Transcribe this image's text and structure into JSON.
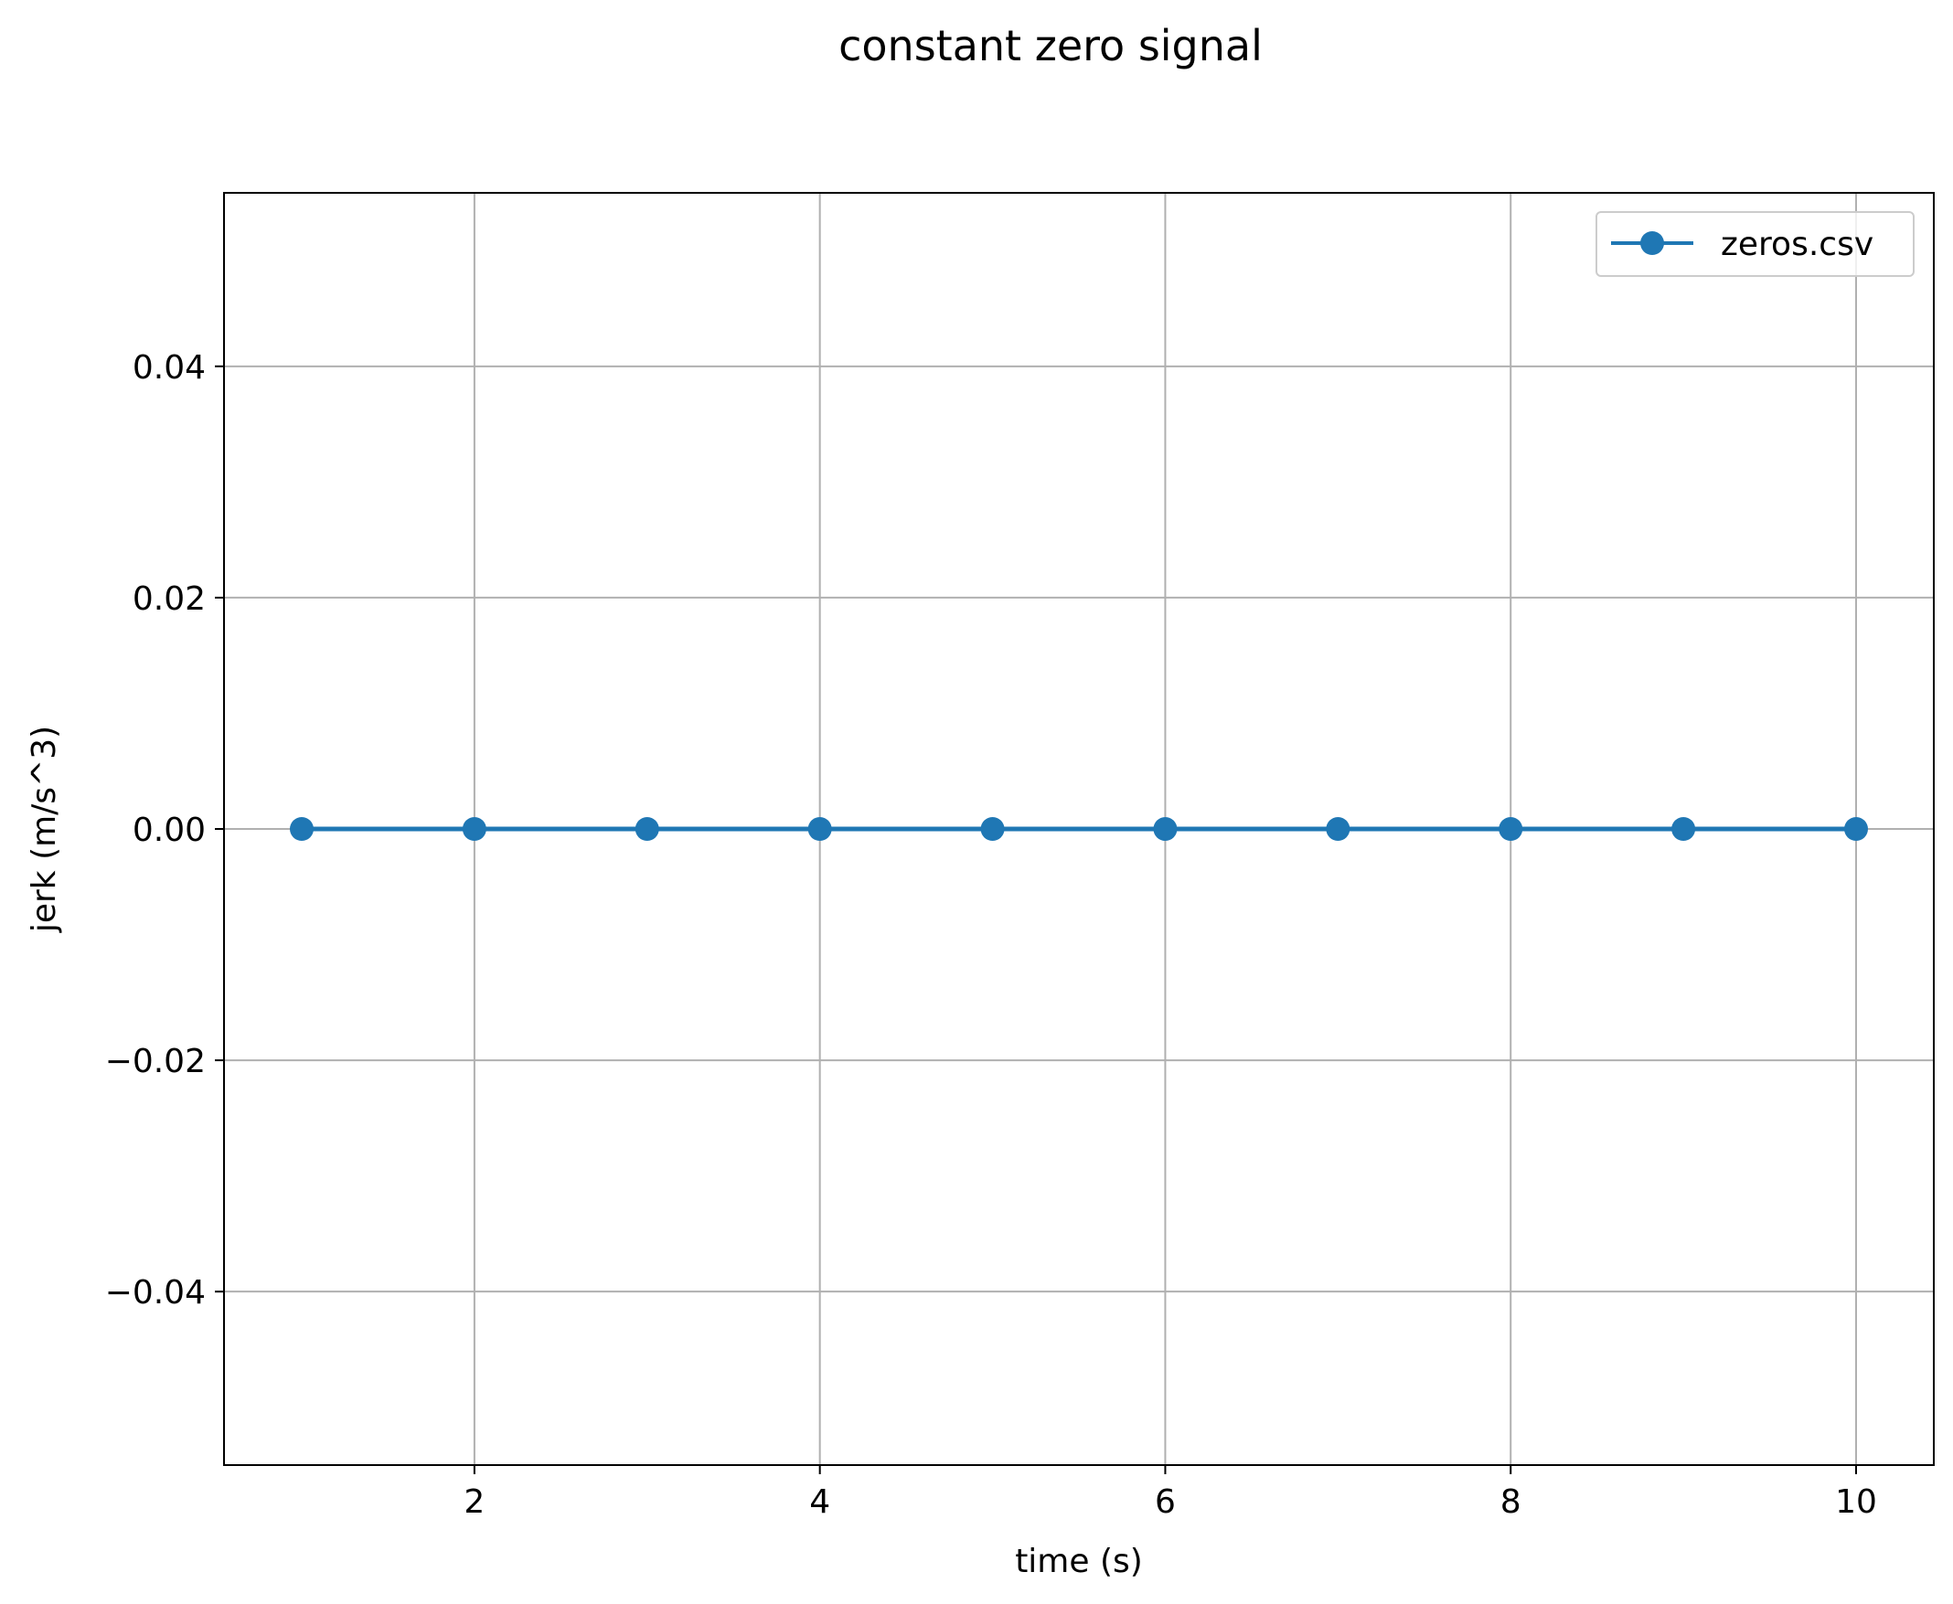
{
  "chart_data": {
    "type": "line",
    "title": "constant zero signal",
    "xlabel": "time (s)",
    "ylabel": "jerk (m/s^3)",
    "xlim": [
      0.55,
      10.45
    ],
    "ylim": [
      -0.055,
      0.055
    ],
    "xticks": [
      2,
      4,
      6,
      8,
      10
    ],
    "xtick_labels": [
      "2",
      "4",
      "6",
      "8",
      "10"
    ],
    "yticks": [
      -0.04,
      -0.02,
      0.0,
      0.02,
      0.04
    ],
    "ytick_labels": [
      "−0.04",
      "−0.02",
      "0.00",
      "0.02",
      "0.04"
    ],
    "grid": true,
    "legend_position": "top-right",
    "series": [
      {
        "name": "zeros.csv",
        "color": "#1f77b4",
        "marker": "circle",
        "x": [
          1,
          2,
          3,
          4,
          5,
          6,
          7,
          8,
          9,
          10
        ],
        "y": [
          0,
          0,
          0,
          0,
          0,
          0,
          0,
          0,
          0,
          0
        ]
      }
    ]
  }
}
